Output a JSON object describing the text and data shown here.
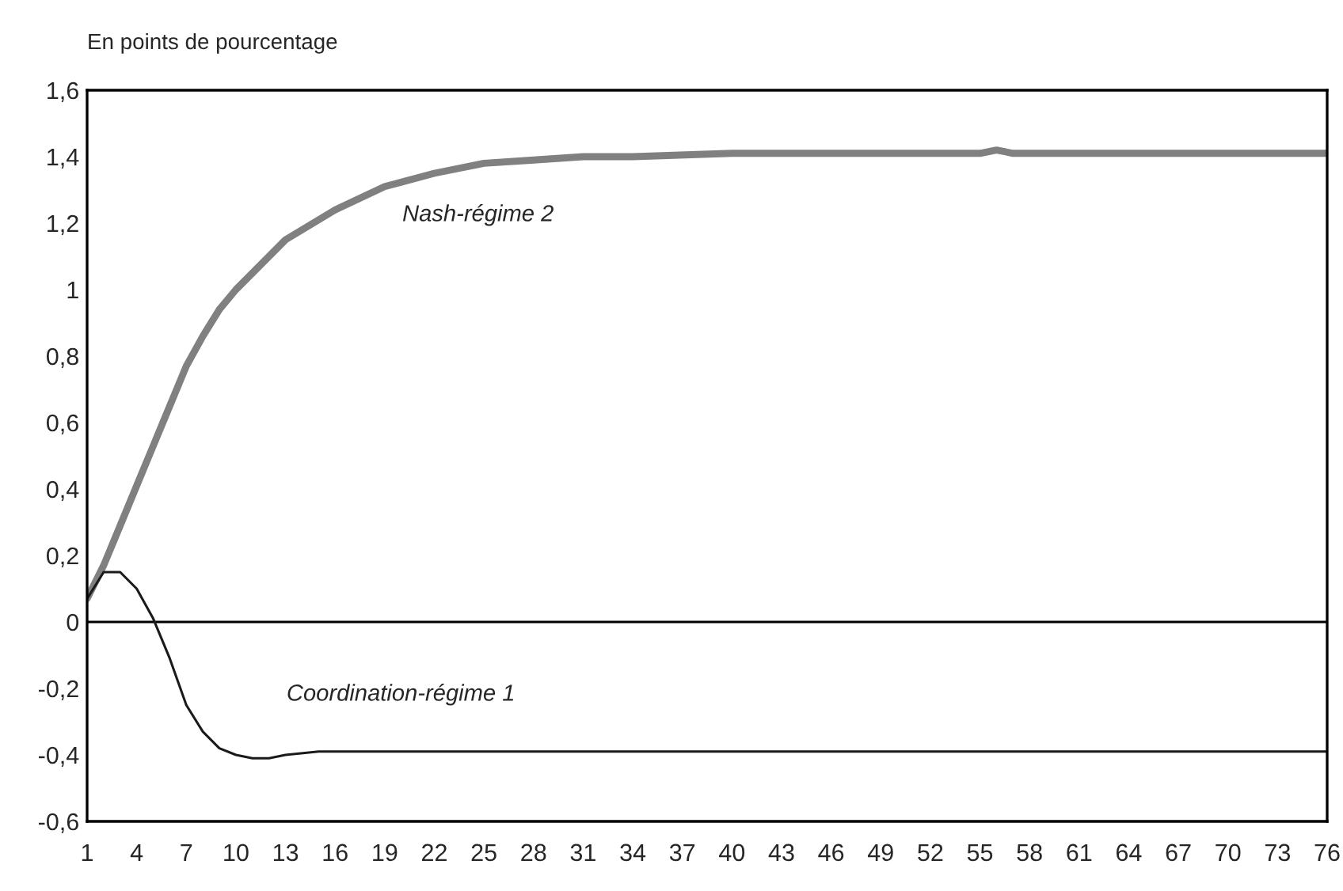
{
  "chart_data": {
    "type": "line",
    "ylabel": "En points de pourcentage",
    "xlim": [
      1,
      76
    ],
    "xticks": [
      1,
      4,
      7,
      10,
      13,
      16,
      19,
      22,
      25,
      28,
      31,
      34,
      37,
      40,
      43,
      46,
      49,
      52,
      55,
      58,
      61,
      64,
      67,
      70,
      73,
      76
    ],
    "ylim": [
      -0.6,
      1.6
    ],
    "yticks": [
      {
        "value": -0.6,
        "label": "-0,6"
      },
      {
        "value": -0.4,
        "label": "-0,4"
      },
      {
        "value": -0.2,
        "label": "-0,2"
      },
      0,
      {
        "value": 0.2,
        "label": "0,2"
      },
      {
        "value": 0.4,
        "label": "0,4"
      },
      {
        "value": 0.6,
        "label": "0,6"
      },
      {
        "value": 0.8,
        "label": "0,8"
      },
      1,
      {
        "value": 1.2,
        "label": "1,2"
      },
      {
        "value": 1.4,
        "label": "1,4"
      },
      {
        "value": 1.6,
        "label": "1,6"
      }
    ],
    "grid": false,
    "legend": false,
    "ref_lines": [
      {
        "axis": "y",
        "value": 0,
        "color": "#000000"
      }
    ],
    "series": [
      {
        "name": "Nash-régime 2",
        "color": "#808080",
        "x": [
          1,
          2,
          3,
          4,
          5,
          6,
          7,
          8,
          9,
          10,
          13,
          16,
          19,
          22,
          25,
          28,
          31,
          34,
          40,
          48,
          55,
          56,
          57,
          60,
          76
        ],
        "values": [
          0.07,
          0.17,
          0.29,
          0.41,
          0.53,
          0.65,
          0.77,
          0.86,
          0.94,
          1.0,
          1.15,
          1.24,
          1.31,
          1.35,
          1.38,
          1.39,
          1.4,
          1.4,
          1.41,
          1.41,
          1.41,
          1.42,
          1.41,
          1.41,
          1.41
        ]
      },
      {
        "name": "Coordination-régime 1",
        "color": "#1a1a1a",
        "x": [
          1,
          2,
          3,
          4,
          5,
          6,
          7,
          8,
          9,
          10,
          11,
          12,
          13,
          15,
          17,
          19,
          22,
          25,
          40,
          76
        ],
        "values": [
          0.07,
          0.15,
          0.15,
          0.1,
          0.01,
          -0.11,
          -0.25,
          -0.33,
          -0.38,
          -0.4,
          -0.41,
          -0.41,
          -0.4,
          -0.39,
          -0.39,
          -0.39,
          -0.39,
          -0.39,
          -0.39,
          -0.39
        ]
      }
    ]
  }
}
